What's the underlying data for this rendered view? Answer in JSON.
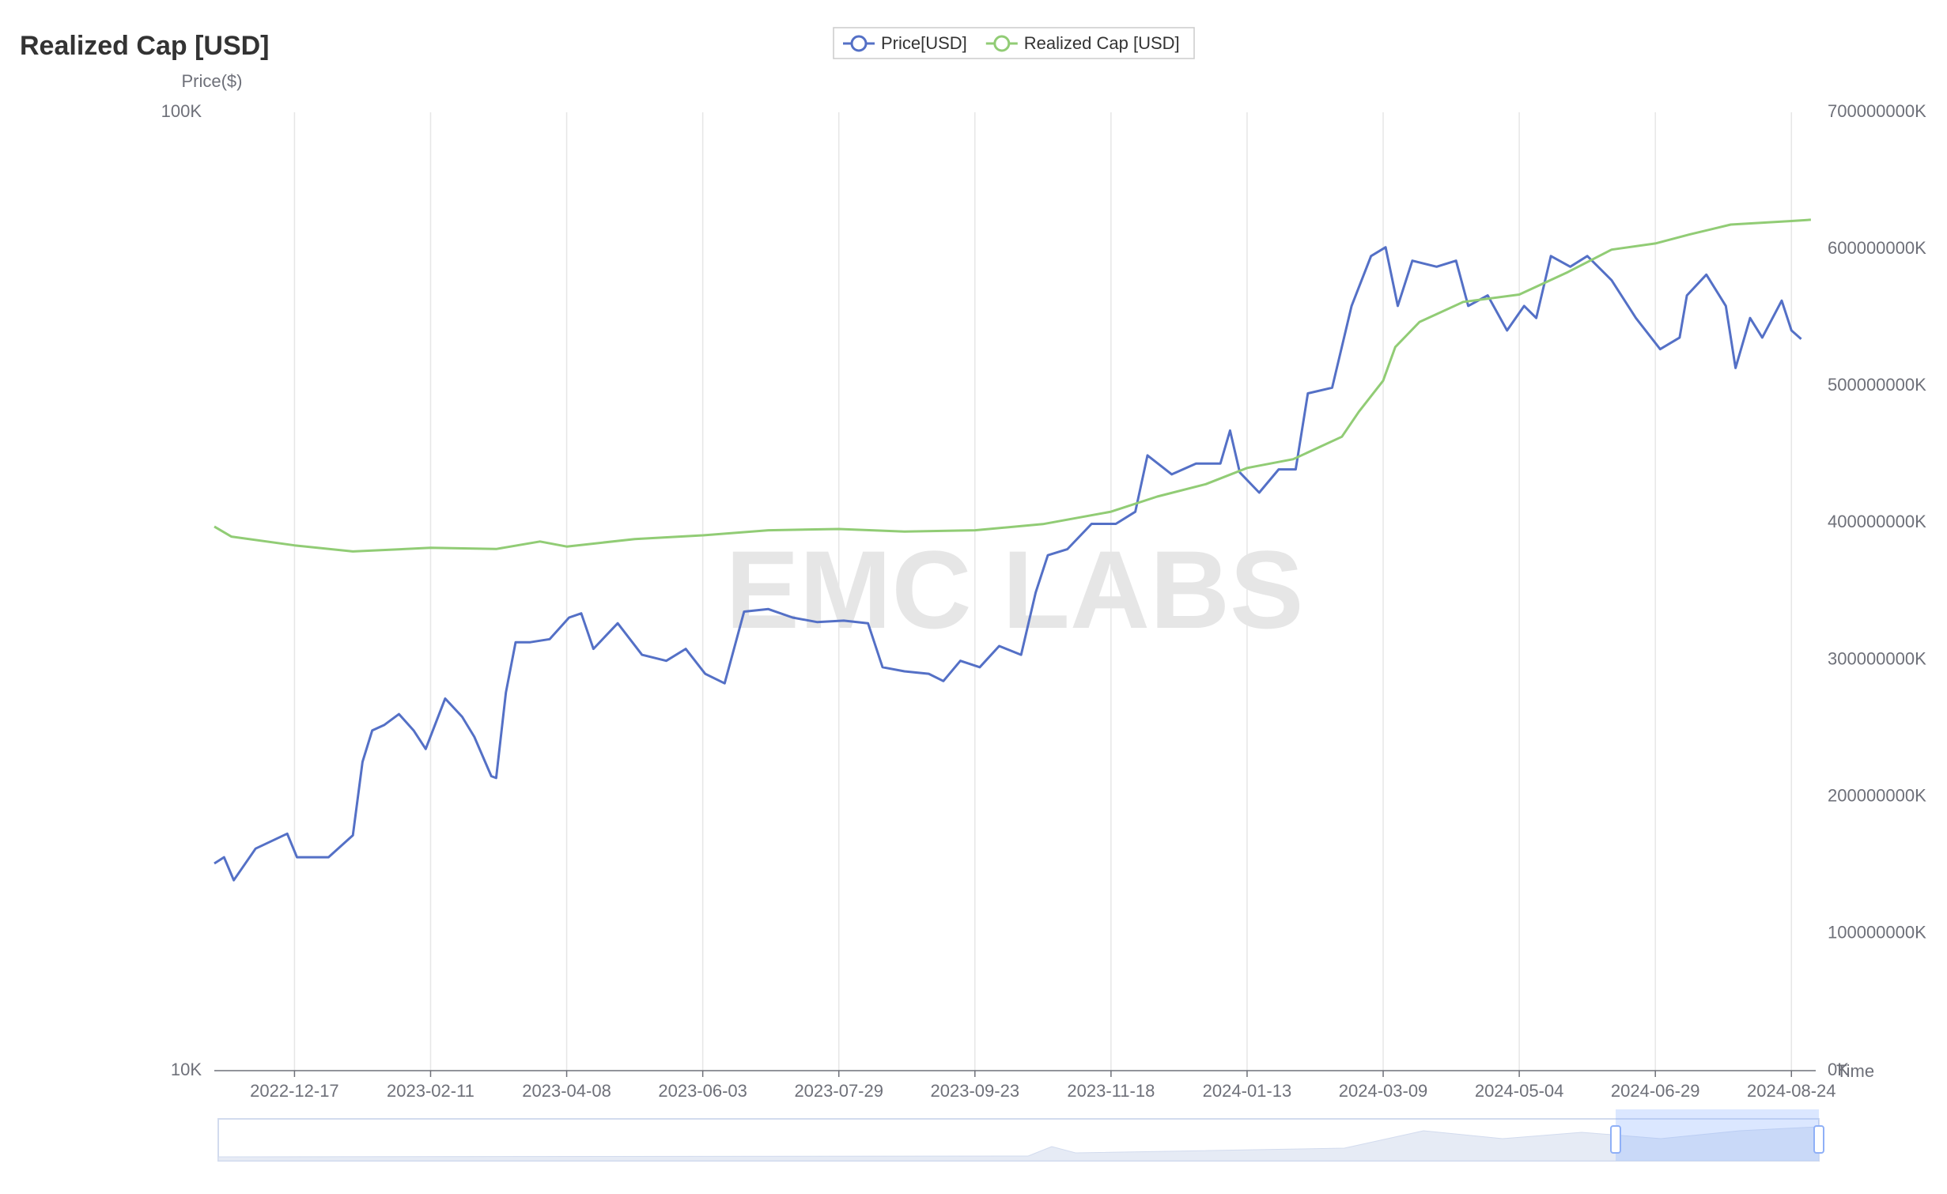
{
  "chart_data": {
    "type": "line",
    "title": "Realized Cap [USD]",
    "watermark": "EMC LABS",
    "ylabel": "Price($)",
    "xlabel": "Time",
    "log_y": true,
    "grid": true,
    "xlim": [
      "2022-11-14",
      "2024-09-03"
    ],
    "xticks": [
      "2022-12-17",
      "2023-02-11",
      "2023-04-08",
      "2023-06-03",
      "2023-07-29",
      "2023-09-23",
      "2023-11-18",
      "2024-01-13",
      "2024-03-09",
      "2024-05-04",
      "2024-06-29",
      "2024-08-24"
    ],
    "ylim": [
      10000,
      100000
    ],
    "yticks": [
      {
        "value": 10000,
        "label": "10K"
      },
      {
        "value": 100000,
        "label": "100K"
      }
    ],
    "y2lim": [
      0,
      700000000
    ],
    "y2ticks": [
      {
        "value": 0,
        "label": "0K"
      },
      {
        "value": 100000000,
        "label": "100000000K"
      },
      {
        "value": 200000000,
        "label": "200000000K"
      },
      {
        "value": 300000000,
        "label": "300000000K"
      },
      {
        "value": 400000000,
        "label": "400000000K"
      },
      {
        "value": 500000000,
        "label": "500000000K"
      },
      {
        "value": 600000000,
        "label": "600000000K"
      },
      {
        "value": 700000000,
        "label": "700000000K"
      }
    ],
    "series": [
      {
        "name": "Price[USD]",
        "color": "#5470c6",
        "x": [
          "2022-11-14",
          "2022-11-18",
          "2022-11-22",
          "2022-12-01",
          "2022-12-14",
          "2022-12-18",
          "2022-12-31",
          "2023-01-10",
          "2023-01-14",
          "2023-01-18",
          "2023-01-23",
          "2023-01-29",
          "2023-02-04",
          "2023-02-09",
          "2023-02-17",
          "2023-02-24",
          "2023-03-01",
          "2023-03-08",
          "2023-03-10",
          "2023-03-14",
          "2023-03-18",
          "2023-03-24",
          "2023-04-01",
          "2023-04-09",
          "2023-04-14",
          "2023-04-19",
          "2023-04-29",
          "2023-05-09",
          "2023-05-19",
          "2023-05-27",
          "2023-06-04",
          "2023-06-12",
          "2023-06-20",
          "2023-06-30",
          "2023-07-10",
          "2023-07-20",
          "2023-07-31",
          "2023-08-10",
          "2023-08-16",
          "2023-08-25",
          "2023-09-04",
          "2023-09-10",
          "2023-09-17",
          "2023-09-25",
          "2023-10-03",
          "2023-10-12",
          "2023-10-18",
          "2023-10-23",
          "2023-10-31",
          "2023-11-10",
          "2023-11-20",
          "2023-11-28",
          "2023-12-03",
          "2023-12-13",
          "2023-12-23",
          "2024-01-02",
          "2024-01-06",
          "2024-01-10",
          "2024-01-18",
          "2024-01-26",
          "2024-02-02",
          "2024-02-07",
          "2024-02-17",
          "2024-02-25",
          "2024-03-04",
          "2024-03-10",
          "2024-03-15",
          "2024-03-21",
          "2024-03-31",
          "2024-04-08",
          "2024-04-13",
          "2024-04-21",
          "2024-04-29",
          "2024-05-06",
          "2024-05-11",
          "2024-05-17",
          "2024-05-25",
          "2024-06-01",
          "2024-06-11",
          "2024-06-21",
          "2024-07-01",
          "2024-07-09",
          "2024-07-12",
          "2024-07-20",
          "2024-07-28",
          "2024-08-01",
          "2024-08-07",
          "2024-08-12",
          "2024-08-20",
          "2024-08-24",
          "2024-08-28"
        ],
        "values": [
          16450,
          16700,
          15800,
          17050,
          17670,
          16700,
          16700,
          17600,
          21000,
          22650,
          22950,
          23550,
          22650,
          21660,
          24450,
          23400,
          22300,
          20290,
          20200,
          24800,
          27990,
          27990,
          28200,
          29700,
          30000,
          27550,
          29300,
          27160,
          26770,
          27550,
          25950,
          25360,
          30130,
          30310,
          29700,
          29380,
          29480,
          29300,
          26360,
          26100,
          25950,
          25500,
          26770,
          26360,
          27740,
          27160,
          31540,
          34500,
          35000,
          37200,
          37200,
          38300,
          43850,
          41900,
          43000,
          43000,
          46550,
          42100,
          40100,
          42400,
          42400,
          50900,
          51600,
          62800,
          70800,
          72300,
          62800,
          70000,
          69000,
          70000,
          62800,
          64400,
          59200,
          62800,
          61000,
          70800,
          69000,
          70800,
          66800,
          61000,
          56600,
          58200,
          64400,
          67700,
          62800,
          54100,
          61000,
          58200,
          63600,
          59200,
          58000
        ]
      },
      {
        "name": "Realized Cap [USD]",
        "color": "#91cc75",
        "axis": "y2",
        "x": [
          "2022-11-14",
          "2022-11-21",
          "2022-12-17",
          "2023-01-10",
          "2023-02-11",
          "2023-03-10",
          "2023-03-28",
          "2023-04-08",
          "2023-05-06",
          "2023-06-03",
          "2023-06-30",
          "2023-07-29",
          "2023-08-25",
          "2023-09-23",
          "2023-10-21",
          "2023-11-18",
          "2023-12-07",
          "2023-12-27",
          "2024-01-13",
          "2024-02-01",
          "2024-02-21",
          "2024-02-28",
          "2024-03-09",
          "2024-03-14",
          "2024-03-24",
          "2024-04-11",
          "2024-05-04",
          "2024-05-24",
          "2024-06-11",
          "2024-06-29",
          "2024-07-13",
          "2024-07-30",
          "2024-08-24",
          "2024-09-01"
        ],
        "values": [
          397400000,
          390100000,
          383700000,
          379200000,
          381900000,
          381000000,
          386500000,
          382800000,
          388300000,
          391000000,
          394700000,
          395600000,
          393800000,
          394700000,
          399200000,
          408300000,
          419300000,
          428400000,
          440200000,
          446600000,
          463000000,
          481300000,
          504000000,
          528600000,
          546900000,
          561500000,
          566900000,
          583300000,
          599700000,
          604200000,
          610700000,
          618000000,
          620600000,
          621500000
        ]
      }
    ]
  }
}
